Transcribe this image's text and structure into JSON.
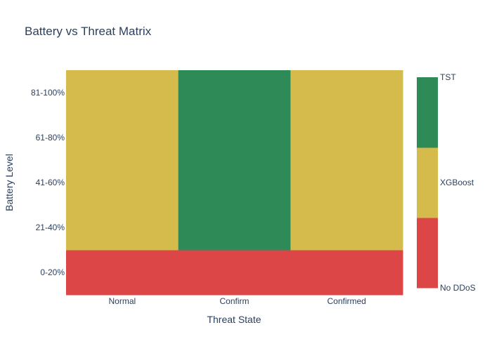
{
  "chart_data": {
    "type": "heatmap",
    "title": "Battery vs Threat Matrix",
    "xlabel": "Threat State",
    "ylabel": "Battery Level",
    "x_categories": [
      "Normal",
      "Confirm",
      "Confirmed"
    ],
    "y_categories": [
      "0-20%",
      "21-40%",
      "41-60%",
      "61-80%",
      "81-100%"
    ],
    "classes": [
      {
        "label": "No DDoS",
        "color": "#dc4646"
      },
      {
        "label": "XGBoost",
        "color": "#d4bb4c"
      },
      {
        "label": "TST",
        "color": "#2e8b57"
      }
    ],
    "z": [
      [
        "No DDoS",
        "No DDoS",
        "No DDoS"
      ],
      [
        "XGBoost",
        "TST",
        "XGBoost"
      ],
      [
        "XGBoost",
        "TST",
        "XGBoost"
      ],
      [
        "XGBoost",
        "TST",
        "XGBoost"
      ],
      [
        "XGBoost",
        "TST",
        "XGBoost"
      ]
    ],
    "legend_position": "right"
  }
}
